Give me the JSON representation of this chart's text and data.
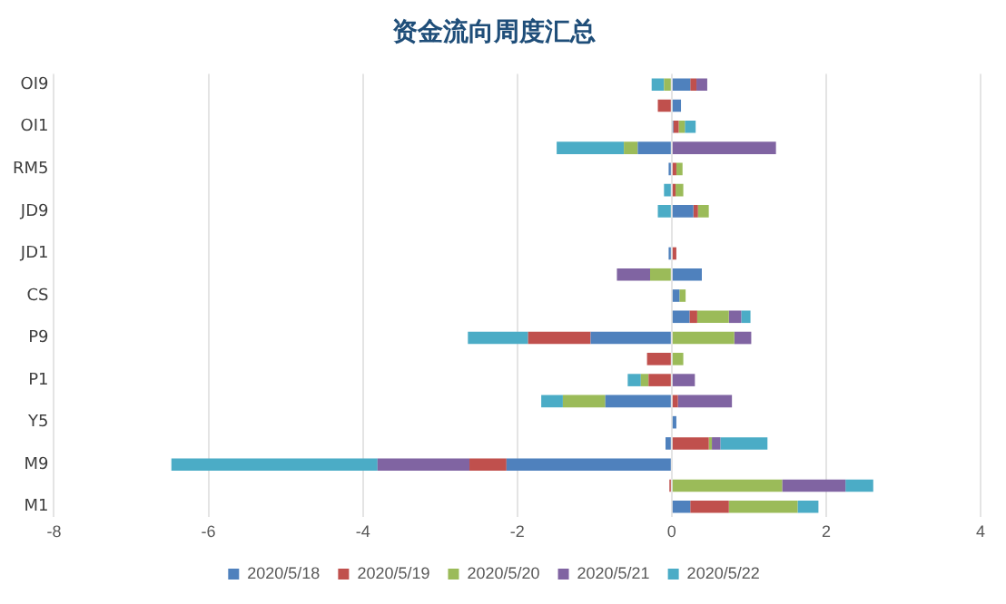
{
  "chart_data": {
    "type": "bar",
    "orientation": "horizontal",
    "stacked": true,
    "title": "资金流向周度汇总",
    "categories": [
      "OI9",
      null,
      "OI1",
      null,
      "RM5",
      null,
      "JD9",
      null,
      "JD1",
      null,
      "CS",
      null,
      "P9",
      null,
      "P1",
      null,
      "Y5",
      null,
      "M9",
      null,
      "M1"
    ],
    "series": [
      {
        "name": "2020/5/18",
        "color": "#4f81bd",
        "values": [
          0.24,
          0.12,
          0.02,
          -0.44,
          -0.04,
          0,
          0.28,
          null,
          -0.04,
          0.39,
          0.1,
          0.23,
          -1.05,
          0,
          0,
          -0.86,
          0.06,
          -0.08,
          -2.14,
          0,
          0.24
        ]
      },
      {
        "name": "2020/5/19",
        "color": "#c0504d",
        "values": [
          0.08,
          -0.18,
          0.07,
          0,
          0.06,
          0.05,
          0.06,
          0,
          0.06,
          0,
          0,
          0.1,
          -0.81,
          -0.32,
          -0.3,
          0.08,
          0,
          0.48,
          -0.48,
          -0.03,
          0.5
        ]
      },
      {
        "name": "2020/5/20",
        "color": "#9bbb59",
        "values": [
          -0.1,
          0,
          0.08,
          -0.18,
          0.08,
          0.1,
          0.14,
          0,
          0,
          -0.28,
          0.08,
          0.41,
          0.81,
          0.15,
          -0.1,
          -0.55,
          0,
          0.04,
          0,
          1.43,
          0.89
        ]
      },
      {
        "name": "2020/5/21",
        "color": "#8064a2",
        "values": [
          0.14,
          0,
          0,
          1.35,
          0,
          0,
          0,
          0,
          0,
          -0.43,
          0,
          0.16,
          0.22,
          0,
          0.3,
          0.7,
          0,
          0.11,
          -1.19,
          0.82,
          0
        ]
      },
      {
        "name": "2020/5/22",
        "color": "#4bacc6",
        "values": [
          -0.16,
          0,
          0.14,
          -0.87,
          0,
          -0.1,
          -0.18,
          0,
          0,
          0,
          0,
          0.12,
          -0.78,
          0,
          -0.17,
          -0.28,
          0,
          0.61,
          -2.67,
          0.36,
          0.27
        ]
      }
    ],
    "xlim": [
      -8,
      4
    ],
    "xticks": [
      -8,
      -6,
      -4,
      -2,
      0,
      2,
      4
    ],
    "grid": "x",
    "legend": "bottom"
  }
}
